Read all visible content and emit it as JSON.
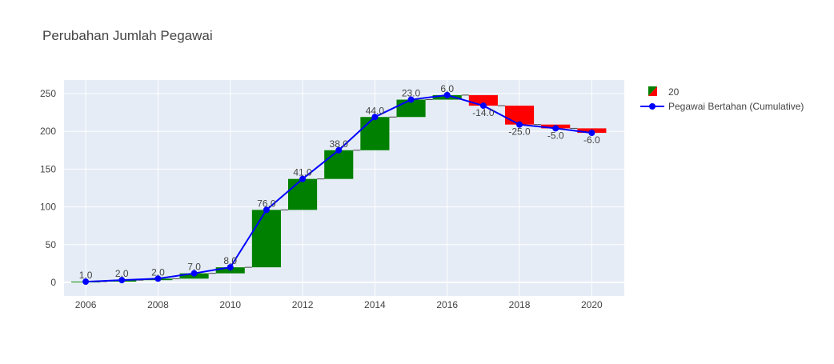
{
  "chart_data": {
    "type": "waterfall",
    "title": "Perubahan Jumlah Pegawai",
    "xlabel": "",
    "ylabel": "",
    "x": [
      2006,
      2007,
      2008,
      2009,
      2010,
      2011,
      2012,
      2013,
      2014,
      2015,
      2016,
      2017,
      2018,
      2019,
      2020
    ],
    "xticks": [
      2006,
      2008,
      2010,
      2012,
      2014,
      2016,
      2018,
      2020
    ],
    "yticks": [
      0,
      50,
      100,
      150,
      200,
      250
    ],
    "ylim": [
      -18,
      268
    ],
    "xlim": [
      2005.4,
      2020.9
    ],
    "grid": true,
    "legend_position": "top-right",
    "series": [
      {
        "name": "20",
        "type": "waterfall",
        "values": [
          1.0,
          2.0,
          2.0,
          7.0,
          8.0,
          76.0,
          41.0,
          38.0,
          44.0,
          23.0,
          6.0,
          -14.0,
          -25.0,
          -5.0,
          -6.0
        ],
        "labels": [
          "1.0",
          "2.0",
          "2.0",
          "7.0",
          "8.0",
          "76.0",
          "41.0",
          "38.0",
          "44.0",
          "23.0",
          "6.0",
          "-14.0",
          "-25.0",
          "-5.0",
          "-6.0"
        ],
        "increasing_color": "#008000",
        "decreasing_color": "#ff0000",
        "connector_color": "#444444"
      },
      {
        "name": "Pegawai Bertahan (Cumulative)",
        "type": "line",
        "values": [
          1,
          3,
          5,
          12,
          20,
          96,
          137,
          175,
          219,
          242,
          248,
          234,
          209,
          204,
          198
        ],
        "color": "#0000ff"
      }
    ]
  },
  "colors": {
    "plot_bg": "#e5ecf6",
    "grid": "#ffffff",
    "axis_text": "#444444",
    "title_text": "#444444"
  }
}
